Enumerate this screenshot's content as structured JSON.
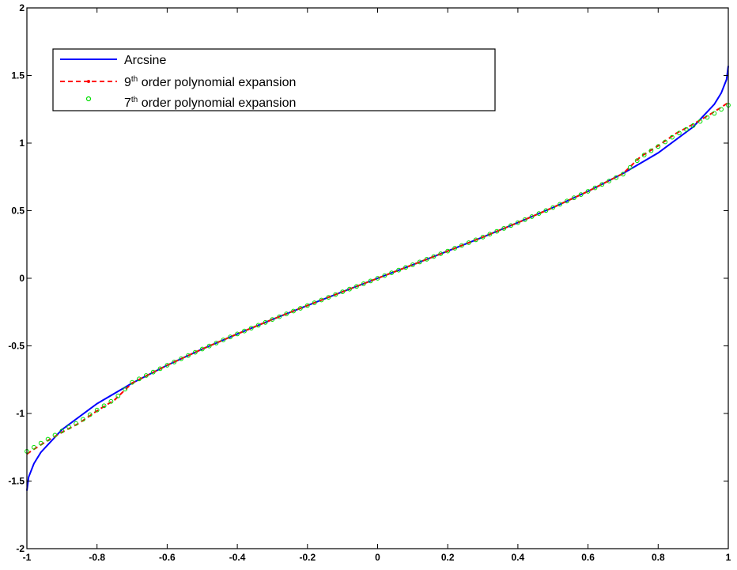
{
  "chart_data": {
    "type": "line",
    "title": "",
    "xlabel": "",
    "ylabel": "",
    "xlim": [
      -1,
      1
    ],
    "ylim": [
      -2,
      2
    ],
    "xticks": [
      "-1",
      "-0.8",
      "-0.6",
      "-0.4",
      "-0.2",
      "0",
      "0.2",
      "0.4",
      "0.6",
      "0.8",
      "1"
    ],
    "yticks": [
      "-2",
      "-1.5",
      "-1",
      "-0.5",
      "0",
      "0.5",
      "1",
      "1.5",
      "2"
    ],
    "grid": false,
    "legend_position": "top-left",
    "series": [
      {
        "name": "Arcsine",
        "color": "#0000ff",
        "style": "solid",
        "x": [
          -1.0,
          -0.995,
          -0.98,
          -0.96,
          -0.9,
          -0.8,
          -0.7,
          -0.6,
          -0.5,
          -0.4,
          -0.3,
          -0.2,
          -0.1,
          0.0,
          0.1,
          0.2,
          0.3,
          0.4,
          0.5,
          0.6,
          0.7,
          0.8,
          0.9,
          0.96,
          0.98,
          0.995,
          1.0
        ],
        "y": [
          -1.5708,
          -1.4708,
          -1.3705,
          -1.287,
          -1.1198,
          -0.9273,
          -0.7754,
          -0.6435,
          -0.5236,
          -0.4115,
          -0.3047,
          -0.2014,
          -0.1002,
          0.0,
          0.1002,
          0.2014,
          0.3047,
          0.4115,
          0.5236,
          0.6435,
          0.7754,
          0.9273,
          1.1198,
          1.287,
          1.3705,
          1.4708,
          1.5708
        ]
      },
      {
        "name": "9th order polynomial expansion",
        "label_base": "9",
        "label_sup": "th",
        "label_rest": " order polynomial expansion",
        "color": "#ff0000",
        "style": "dashed",
        "x": [
          -1.0,
          -0.98,
          -0.96,
          -0.94,
          -0.92,
          -0.9,
          -0.85,
          -0.8,
          -0.75,
          -0.7,
          -0.6,
          -0.5,
          -0.4,
          -0.3,
          -0.2,
          -0.1,
          0.0,
          0.1,
          0.2,
          0.3,
          0.4,
          0.5,
          0.6,
          0.7,
          0.75,
          0.8,
          0.85,
          0.9,
          0.92,
          0.94,
          0.96,
          0.98,
          1.0
        ],
        "y": [
          -1.3,
          -1.265,
          -1.232,
          -1.2,
          -1.17,
          -1.14,
          -1.07,
          -0.98,
          -0.9,
          -0.775,
          -0.6435,
          -0.5236,
          -0.4115,
          -0.3047,
          -0.2014,
          -0.1002,
          0.0,
          0.1002,
          0.2014,
          0.3047,
          0.4115,
          0.5236,
          0.6435,
          0.775,
          0.9,
          0.98,
          1.07,
          1.14,
          1.17,
          1.2,
          1.232,
          1.265,
          1.3
        ]
      },
      {
        "name": "7th order polynomial expansion",
        "label_base": "7",
        "label_sup": "th",
        "label_rest": " order polynomial expansion",
        "color": "#00dd00",
        "style": "markers",
        "x": [
          -1.0,
          -0.98,
          -0.96,
          -0.94,
          -0.92,
          -0.9,
          -0.85,
          -0.8,
          -0.75,
          -0.7,
          -0.6,
          -0.5,
          -0.4,
          -0.3,
          -0.2,
          -0.1,
          0.0,
          0.1,
          0.2,
          0.3,
          0.4,
          0.5,
          0.6,
          0.7,
          0.75,
          0.8,
          0.85,
          0.9,
          0.92,
          0.94,
          0.96,
          0.98,
          1.0
        ],
        "y": [
          -1.28,
          -1.25,
          -1.22,
          -1.19,
          -1.16,
          -1.13,
          -1.06,
          -0.975,
          -0.895,
          -0.77,
          -0.6435,
          -0.5236,
          -0.4115,
          -0.3047,
          -0.2014,
          -0.1002,
          0.0,
          0.1002,
          0.2014,
          0.3047,
          0.4115,
          0.5236,
          0.6435,
          0.77,
          0.895,
          0.975,
          1.06,
          1.13,
          1.16,
          1.19,
          1.22,
          1.25,
          1.28
        ]
      }
    ]
  }
}
